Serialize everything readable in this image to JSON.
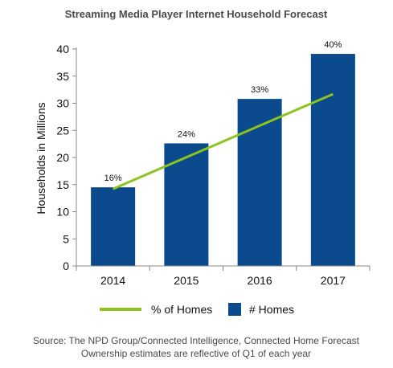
{
  "colors": {
    "bar": "#0b4a8c",
    "line": "#8cc31e",
    "axis": "#888888",
    "text": "#111111",
    "title": "#4a4a4a"
  },
  "chart_data": {
    "type": "bar",
    "title": "Streaming Media Player Internet Household Forecast",
    "xlabel": "",
    "ylabel": "Households in Millions",
    "ylim": [
      0,
      40
    ],
    "yticks": [
      0,
      5,
      10,
      15,
      20,
      25,
      30,
      35,
      40
    ],
    "categories": [
      "2014",
      "2015",
      "2016",
      "2017"
    ],
    "series": [
      {
        "name": "# Homes",
        "kind": "bar",
        "values": [
          14.5,
          22.6,
          30.8,
          39.1
        ]
      },
      {
        "name": "% of Homes",
        "kind": "line",
        "values": [
          16,
          24,
          33,
          40
        ],
        "labels": [
          "16%",
          "24%",
          "33%",
          "40%"
        ]
      }
    ],
    "legend": [
      "% of Homes",
      "# Homes"
    ],
    "legend_position": "bottom",
    "grid": false
  },
  "source": {
    "line1": "Source: The NPD Group/Connected Intelligence, Connected Home Forecast",
    "line2": "Ownership estimates are reflective of Q1 of each year"
  }
}
